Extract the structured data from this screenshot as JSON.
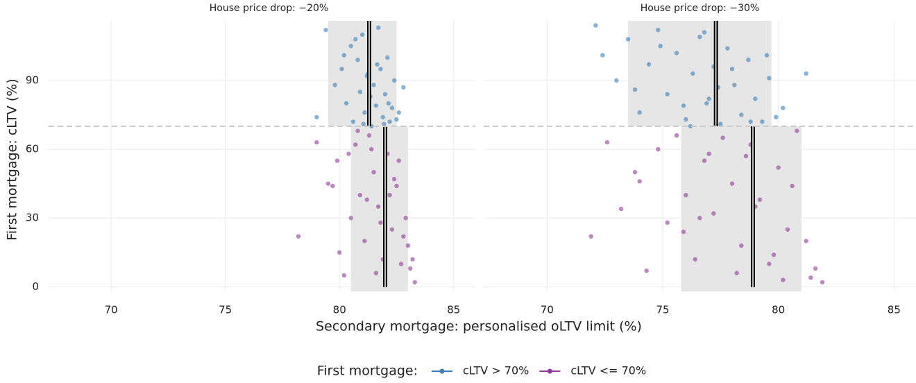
{
  "chart_data": [
    {
      "type": "scatter",
      "title": "House price drop: −20%",
      "xlim": [
        67.26,
        85.95
      ],
      "ylim": [
        -2,
        116
      ],
      "xticks": [
        70,
        75,
        80,
        85
      ],
      "yticks": [
        0,
        30,
        60,
        90
      ],
      "grid": true,
      "threshold": 70,
      "series": [
        {
          "name": "cLTV > 70%",
          "color": "#3a7fb8",
          "band": [
            79.5,
            82.5
          ],
          "median": 81.3,
          "x": [
            79.4,
            79.8,
            80.1,
            80.3,
            80.5,
            80.6,
            80.8,
            80.9,
            81.0,
            81.1,
            81.2,
            81.3,
            81.4,
            81.5,
            81.6,
            81.7,
            81.8,
            81.9,
            82.0,
            82.1,
            82.2,
            82.3,
            82.4,
            82.5,
            82.6,
            82.8,
            79.0,
            80.2,
            81.05,
            81.35,
            81.65,
            81.95,
            82.15,
            80.7,
            81.25
          ],
          "values": [
            112,
            88,
            95,
            80,
            105,
            72,
            99,
            85,
            110,
            76,
            92,
            103,
            70,
            88,
            79,
            113,
            95,
            74,
            84,
            100,
            72,
            78,
            90,
            73,
            76,
            87,
            74,
            101,
            71,
            83,
            97,
            71,
            80,
            108,
            93
          ]
        },
        {
          "name": "cLTV <= 70%",
          "color": "#8e3a96",
          "band": [
            80.5,
            83.0
          ],
          "median": 82.0,
          "x": [
            78.2,
            79.0,
            79.5,
            79.9,
            80.2,
            80.5,
            80.7,
            80.9,
            81.1,
            81.3,
            81.5,
            81.7,
            81.9,
            82.1,
            82.3,
            82.5,
            82.7,
            82.9,
            83.1,
            83.3,
            80.0,
            80.8,
            81.4,
            82.0,
            82.6,
            83.0,
            81.2,
            81.8,
            82.4,
            82.8,
            79.7,
            80.4,
            81.6,
            82.2,
            83.2
          ],
          "values": [
            22,
            63,
            45,
            55,
            5,
            30,
            62,
            40,
            20,
            66,
            50,
            35,
            12,
            58,
            25,
            44,
            10,
            30,
            8,
            2,
            15,
            68,
            60,
            3,
            55,
            18,
            38,
            28,
            47,
            22,
            44,
            58,
            6,
            40,
            12
          ]
        }
      ]
    },
    {
      "type": "scatter",
      "title": "House price drop: −30%",
      "xlim": [
        67.26,
        85.95
      ],
      "ylim": [
        -2,
        116
      ],
      "xticks": [
        70,
        75,
        80,
        85
      ],
      "yticks": [
        0,
        30,
        60,
        90
      ],
      "grid": true,
      "threshold": 70,
      "series": [
        {
          "name": "cLTV > 70%",
          "color": "#3a7fb8",
          "band": [
            73.5,
            79.7
          ],
          "median": 77.3,
          "x": [
            72.1,
            72.4,
            73.0,
            73.5,
            74.0,
            74.4,
            74.8,
            75.2,
            75.6,
            76.0,
            76.3,
            76.6,
            76.9,
            77.2,
            77.5,
            77.8,
            78.1,
            78.4,
            78.7,
            79.0,
            79.3,
            79.6,
            79.9,
            80.2,
            81.2,
            73.8,
            74.9,
            75.9,
            76.8,
            77.4,
            78.0,
            78.8,
            79.5,
            77.0,
            76.2
          ],
          "values": [
            114,
            101,
            90,
            108,
            76,
            97,
            112,
            84,
            102,
            73,
            93,
            109,
            80,
            96,
            71,
            104,
            88,
            75,
            99,
            82,
            72,
            91,
            74,
            78,
            93,
            86,
            105,
            79,
            111,
            87,
            95,
            72,
            101,
            82,
            70
          ]
        },
        {
          "name": "cLTV <= 70%",
          "color": "#8e3a96",
          "band": [
            75.8,
            81.0
          ],
          "median": 78.9,
          "x": [
            71.9,
            72.6,
            73.2,
            73.8,
            74.3,
            74.8,
            75.2,
            75.6,
            76.0,
            76.4,
            76.8,
            77.2,
            77.6,
            78.0,
            78.4,
            78.8,
            79.2,
            79.6,
            80.0,
            80.4,
            80.8,
            81.2,
            81.6,
            81.9,
            74.0,
            75.9,
            77.0,
            78.2,
            79.0,
            79.8,
            80.6,
            81.4,
            76.6,
            78.6,
            80.2
          ],
          "values": [
            22,
            63,
            34,
            50,
            7,
            60,
            28,
            66,
            40,
            12,
            55,
            32,
            65,
            45,
            18,
            62,
            38,
            10,
            52,
            25,
            68,
            20,
            8,
            2,
            46,
            24,
            58,
            6,
            35,
            14,
            44,
            4,
            30,
            57,
            3
          ]
        }
      ]
    }
  ],
  "x_label": "Secondary mortgage: personalised oLTV limit (%)",
  "y_label": "First mortgage: cLTV (%)",
  "legend_title": "First mortgage:"
}
